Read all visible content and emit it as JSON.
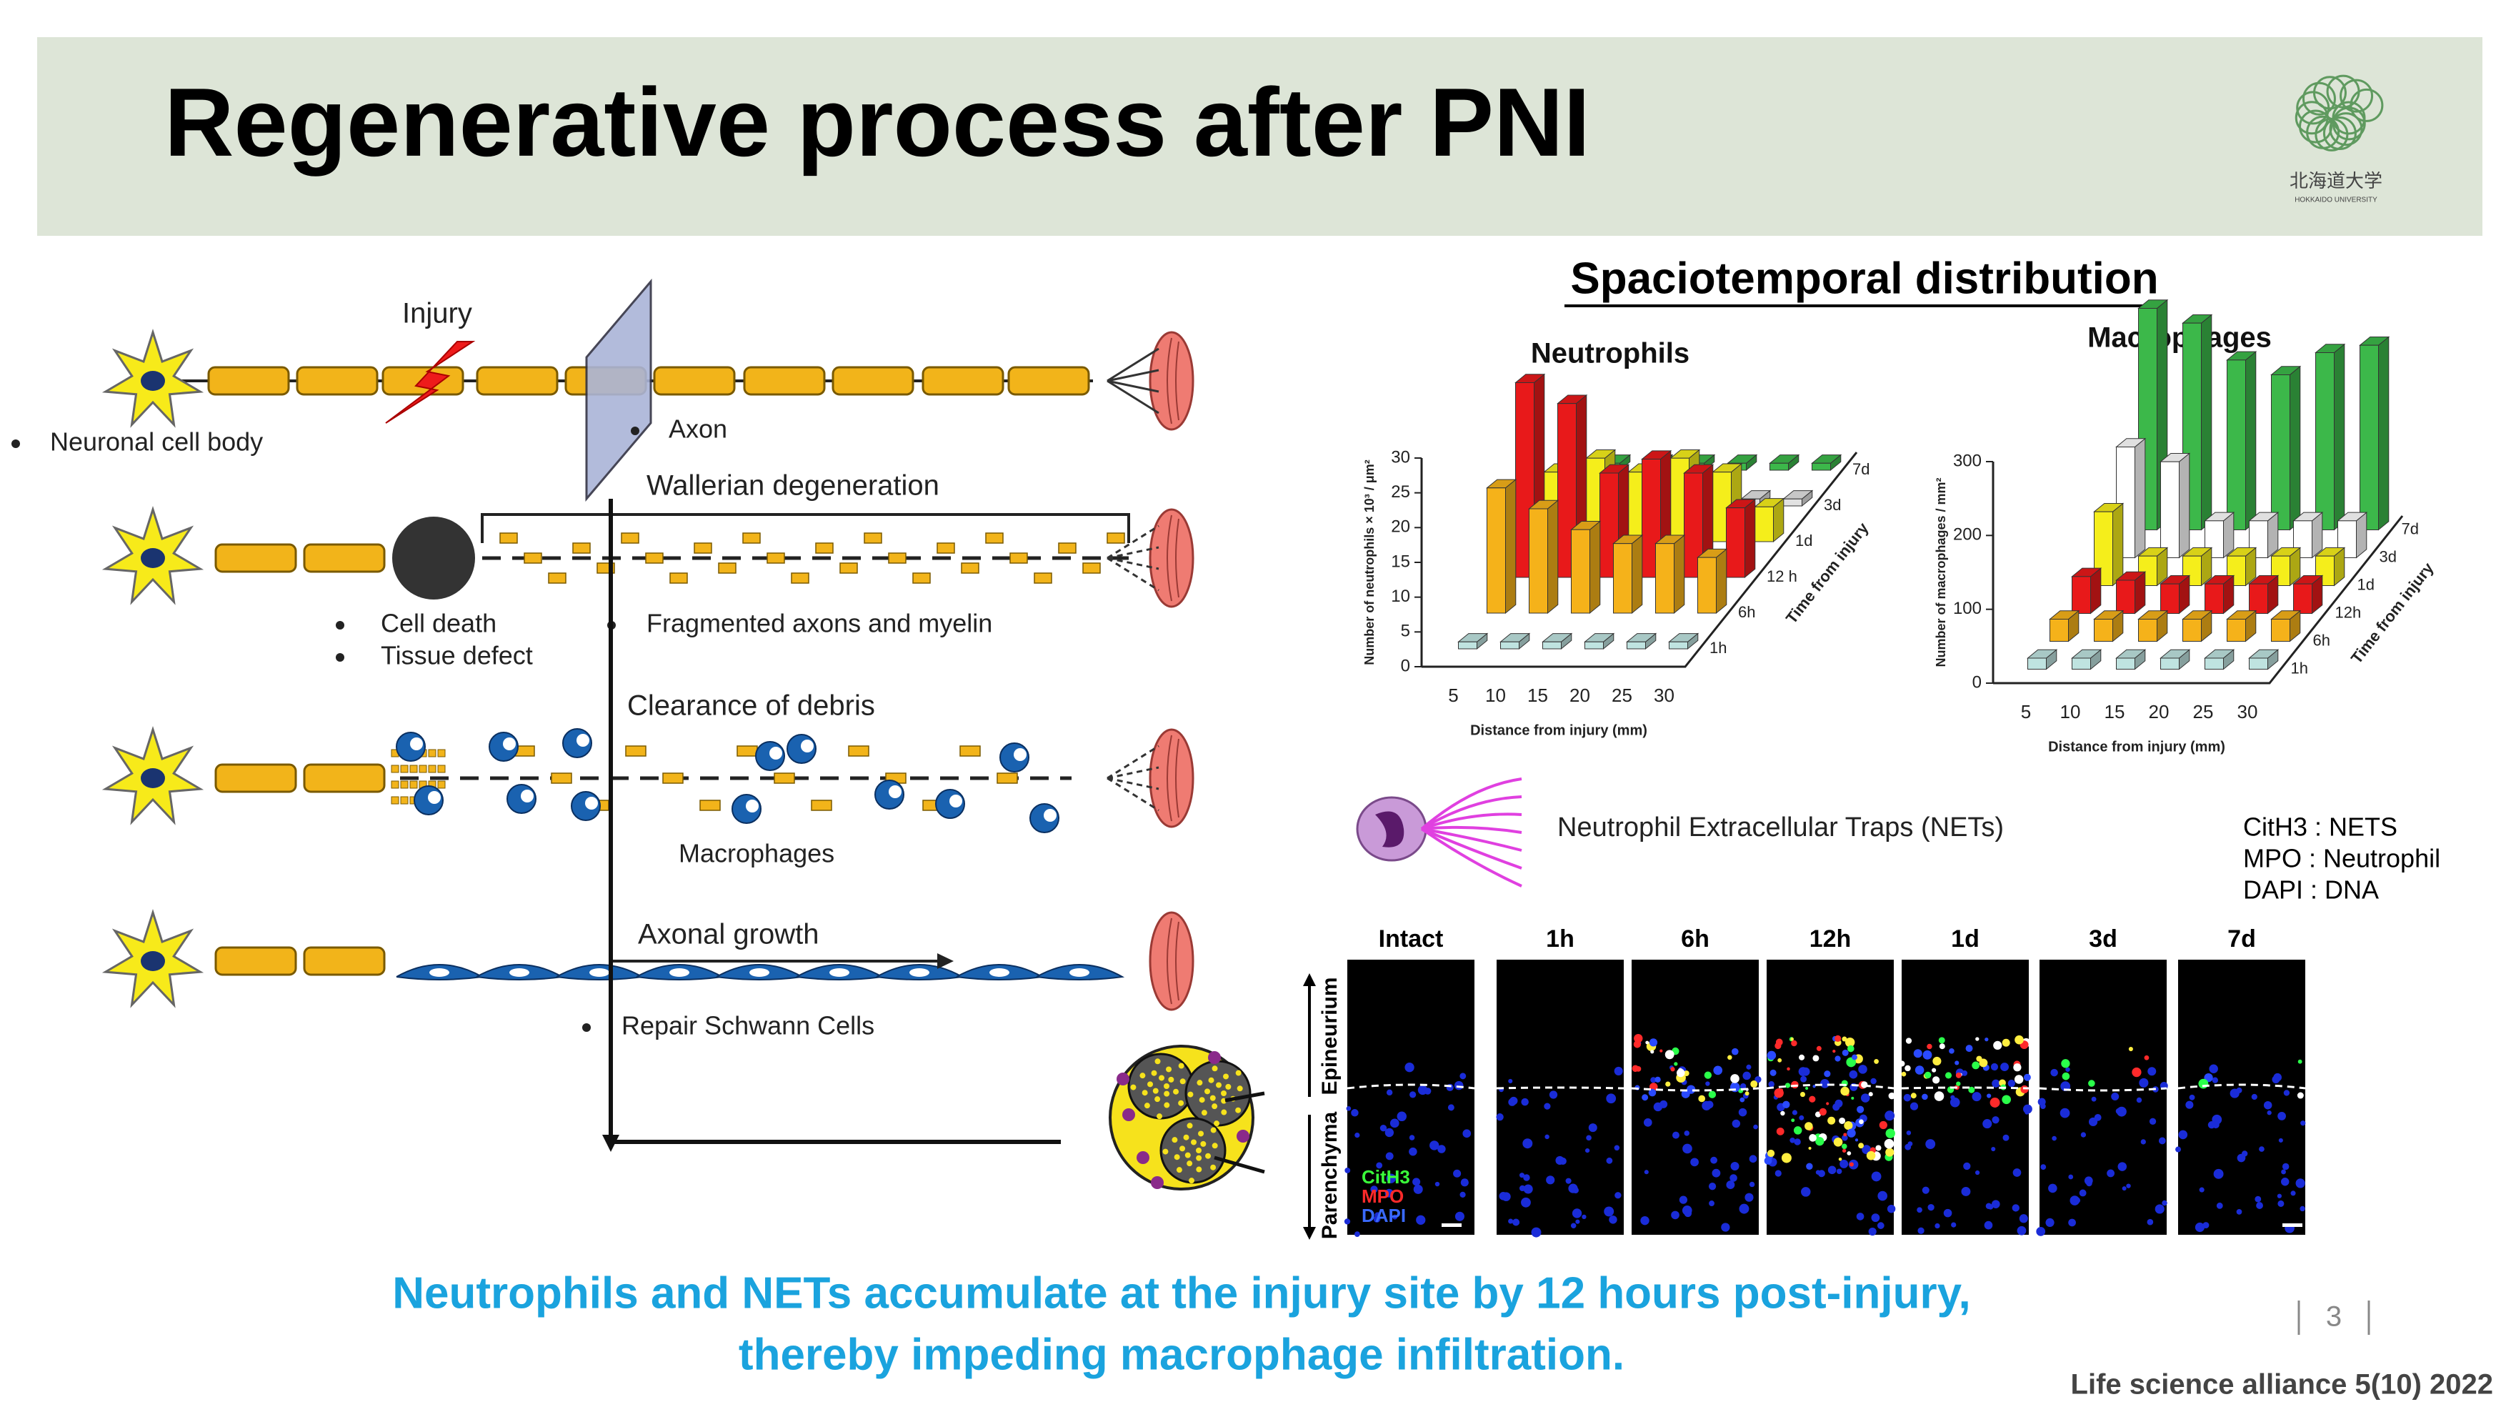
{
  "header": {
    "title": "Regenerative process after PNI",
    "logo_text": "北海道大学",
    "logo_subtext": "HOKKAIDO UNIVERSITY"
  },
  "diagram": {
    "injury": "Injury",
    "neuronal_cell_body": "Neuronal cell body",
    "axon": "Axon",
    "wallerian": "Wallerian degeneration",
    "cell_death": "Cell death",
    "tissue_defect": "Tissue defect",
    "fragmented": "Fragmented axons and myelin",
    "clearance": "Clearance of debris",
    "macrophages": "Macrophages",
    "axonal_growth": "Axonal growth",
    "repair": "Repair Schwann Cells"
  },
  "figure_title": "Spaciotemporal distribution",
  "chart_data": [
    {
      "type": "bar3d",
      "title": "Neutrophils",
      "categories": [
        "5",
        "10",
        "15",
        "20",
        "25",
        "30"
      ],
      "ylim": [
        0,
        30
      ],
      "yticks": [
        0,
        5,
        10,
        15,
        20,
        25,
        30
      ],
      "xlabel": "Distance from injury (mm)",
      "ylabel": "Number of neutrophils × 10³ / μm²",
      "zlabel": "Time from injury",
      "series": [
        {
          "name": "1h",
          "color": "#bfe3e0",
          "values": [
            1,
            1,
            1,
            1,
            1,
            1
          ]
        },
        {
          "name": "6h",
          "color": "#f5b21a",
          "values": [
            18,
            15,
            12,
            10,
            10,
            8
          ]
        },
        {
          "name": "12 h",
          "color": "#e8191a",
          "values": [
            28,
            25,
            15,
            17,
            15,
            10
          ]
        },
        {
          "name": "1d",
          "color": "#f5ee1b",
          "values": [
            10,
            12,
            10,
            12,
            10,
            5
          ]
        },
        {
          "name": "3d",
          "color": "#e2e2e2",
          "values": [
            1,
            1,
            1,
            1,
            1,
            1
          ]
        },
        {
          "name": "7d",
          "color": "#3cb84a",
          "values": [
            1,
            1,
            1,
            1,
            1,
            1
          ]
        }
      ]
    },
    {
      "type": "bar3d",
      "title": "Macrophages",
      "categories": [
        "5",
        "10",
        "15",
        "20",
        "25",
        "30"
      ],
      "ylim": [
        0,
        300
      ],
      "yticks": [
        0,
        100,
        200,
        300
      ],
      "xlabel": "Distance from injury (mm)",
      "ylabel": "Number of macrophages / mm²",
      "zlabel": "Time from injury",
      "series": [
        {
          "name": "1h",
          "color": "#bfe3e0",
          "values": [
            15,
            15,
            15,
            15,
            15,
            15
          ]
        },
        {
          "name": "6h",
          "color": "#f5b21a",
          "values": [
            30,
            30,
            30,
            30,
            30,
            30
          ]
        },
        {
          "name": "12h",
          "color": "#e8191a",
          "values": [
            50,
            45,
            40,
            40,
            40,
            40
          ]
        },
        {
          "name": "1d",
          "color": "#f5ee1b",
          "values": [
            100,
            40,
            40,
            40,
            40,
            40
          ]
        },
        {
          "name": "3d",
          "color": "#ffffff",
          "values": [
            150,
            130,
            50,
            50,
            50,
            50
          ]
        },
        {
          "name": "7d",
          "color": "#3cb84a",
          "values": [
            300,
            280,
            230,
            210,
            240,
            250
          ]
        }
      ]
    }
  ],
  "nets": {
    "label": "Neutrophil Extracellular Traps (NETs)",
    "legend": [
      "CitH3 : NETS",
      "MPO :  Neutrophil",
      "DAPI : DNA"
    ]
  },
  "micrographs": {
    "columns": [
      "Intact",
      "1h",
      "6h",
      "12h",
      "1d",
      "3d",
      "7d"
    ],
    "row_labels": [
      "Epineurium",
      "Parenchyma"
    ],
    "stains": [
      "CitH3",
      "MPO",
      "DAPI"
    ]
  },
  "conclusion": [
    "Neutrophils and NETs accumulate at the injury site by 12 hours post-injury,",
    "thereby impeding macrophage infiltration."
  ],
  "page_number": "3",
  "citation": "Life science alliance 5(10) 2022"
}
